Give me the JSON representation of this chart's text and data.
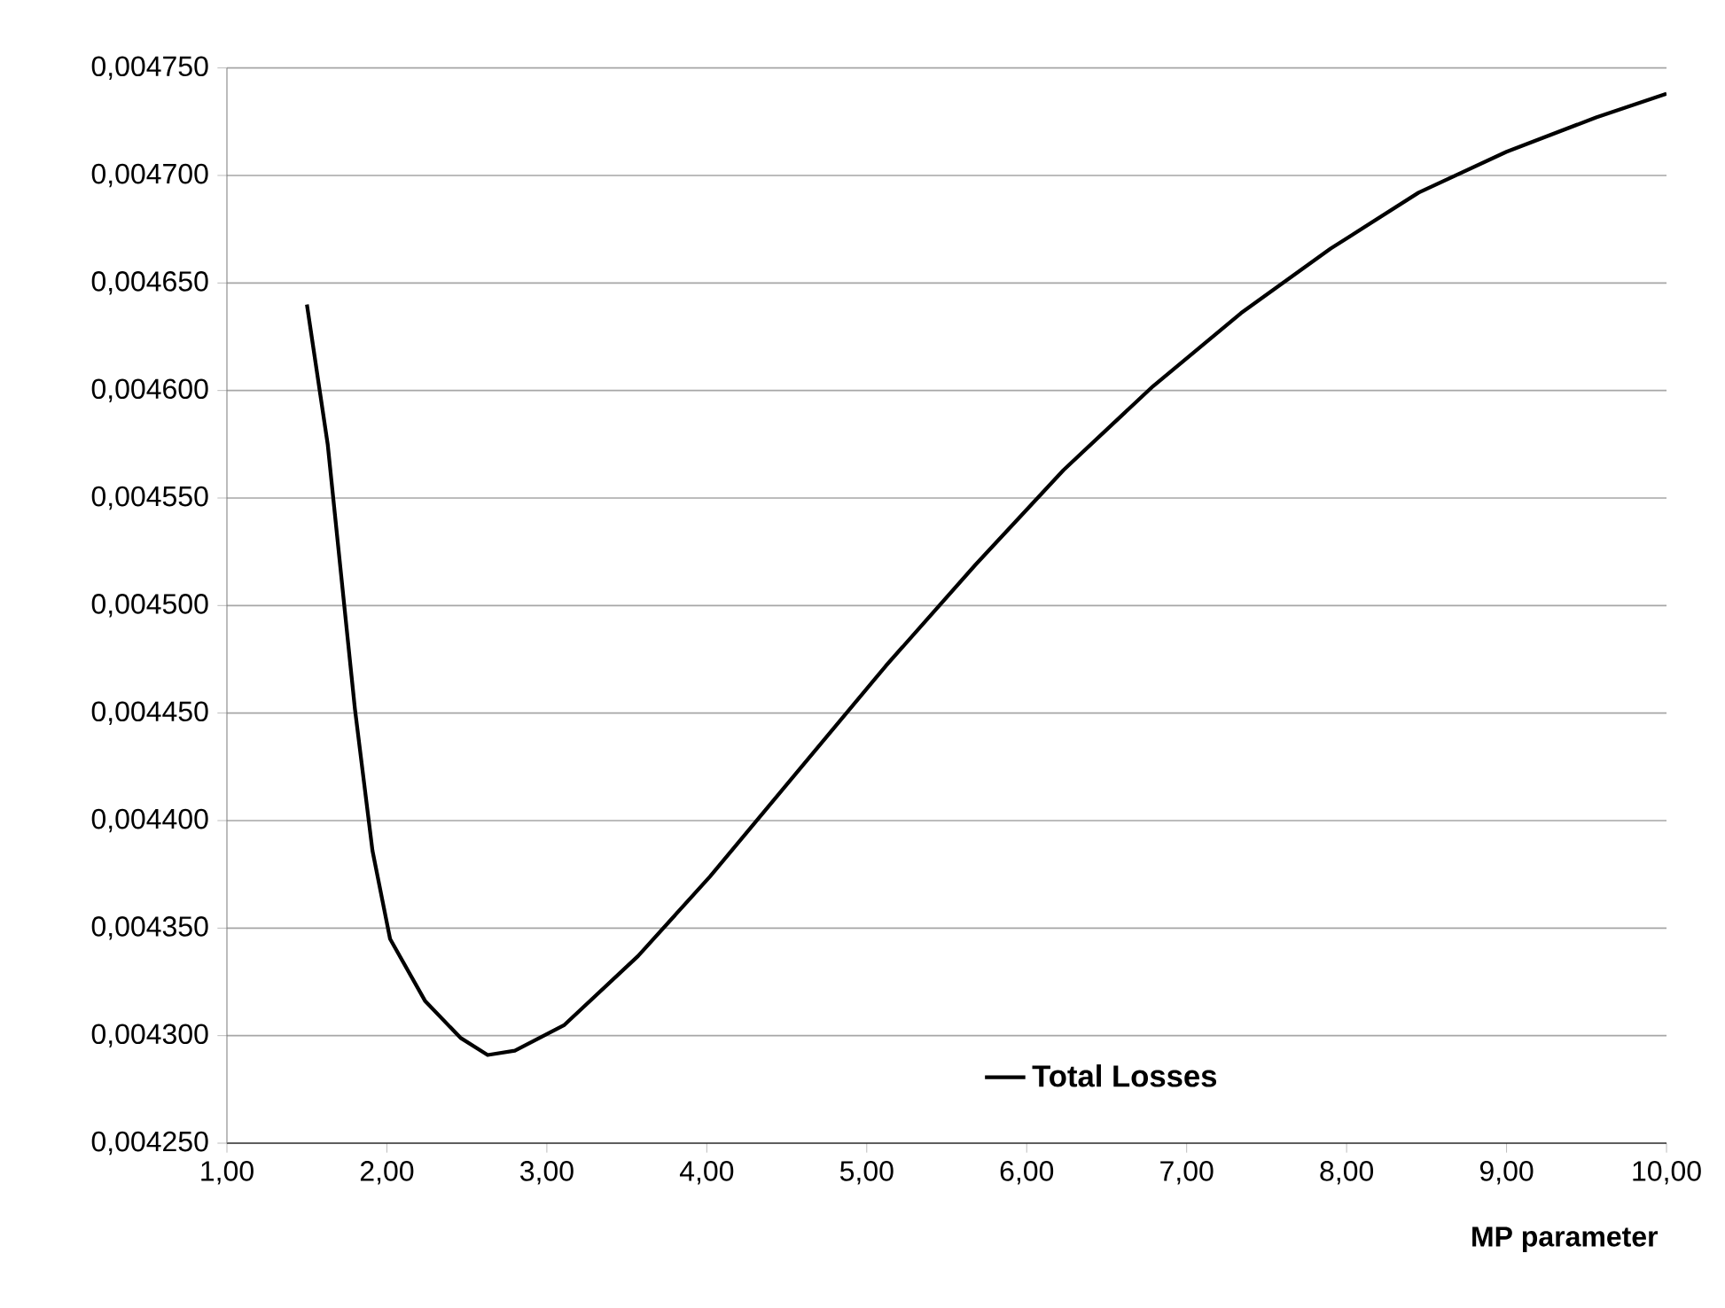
{
  "chart_data": {
    "type": "line",
    "xlabel": "MP parameter",
    "x": [
      1.5,
      1.63,
      1.8,
      1.91,
      2.02,
      2.24,
      2.46,
      2.63,
      2.8,
      3.11,
      3.57,
      4.02,
      4.57,
      5.12,
      5.68,
      6.23,
      6.79,
      7.34,
      7.9,
      8.45,
      9.0,
      9.56,
      10.0
    ],
    "series": [
      {
        "name": "Total Losses",
        "color": "#000000",
        "values": [
          0.00464,
          0.004575,
          0.004452,
          0.004386,
          0.004345,
          0.004316,
          0.004299,
          0.004291,
          0.004293,
          0.004305,
          0.004337,
          0.004374,
          0.004423,
          0.004472,
          0.004519,
          0.004563,
          0.004602,
          0.004636,
          0.004666,
          0.004692,
          0.004711,
          0.004727,
          0.004738
        ]
      }
    ],
    "xlim": [
      1,
      10
    ],
    "ylim": [
      0.00425,
      0.00475
    ],
    "xticks": [
      {
        "value": 1,
        "label": "1,00"
      },
      {
        "value": 2,
        "label": "2,00"
      },
      {
        "value": 3,
        "label": "3,00"
      },
      {
        "value": 4,
        "label": "4,00"
      },
      {
        "value": 5,
        "label": "5,00"
      },
      {
        "value": 6,
        "label": "6,00"
      },
      {
        "value": 7,
        "label": "7,00"
      },
      {
        "value": 8,
        "label": "8,00"
      },
      {
        "value": 9,
        "label": "9,00"
      },
      {
        "value": 10,
        "label": "10,00"
      }
    ],
    "yticks": [
      {
        "value": 0.00425,
        "label": "0,004250"
      },
      {
        "value": 0.0043,
        "label": "0,004300"
      },
      {
        "value": 0.00435,
        "label": "0,004350"
      },
      {
        "value": 0.0044,
        "label": "0,004400"
      },
      {
        "value": 0.00445,
        "label": "0,004450"
      },
      {
        "value": 0.0045,
        "label": "0,004500"
      },
      {
        "value": 0.00455,
        "label": "0,004550"
      },
      {
        "value": 0.0046,
        "label": "0,004600"
      },
      {
        "value": 0.00465,
        "label": "0,004650"
      },
      {
        "value": 0.0047,
        "label": "0,004700"
      },
      {
        "value": 0.00475,
        "label": "0,004750"
      }
    ],
    "grid": "y",
    "legend": "bottom right",
    "marker": "none",
    "line_style": "solid"
  }
}
